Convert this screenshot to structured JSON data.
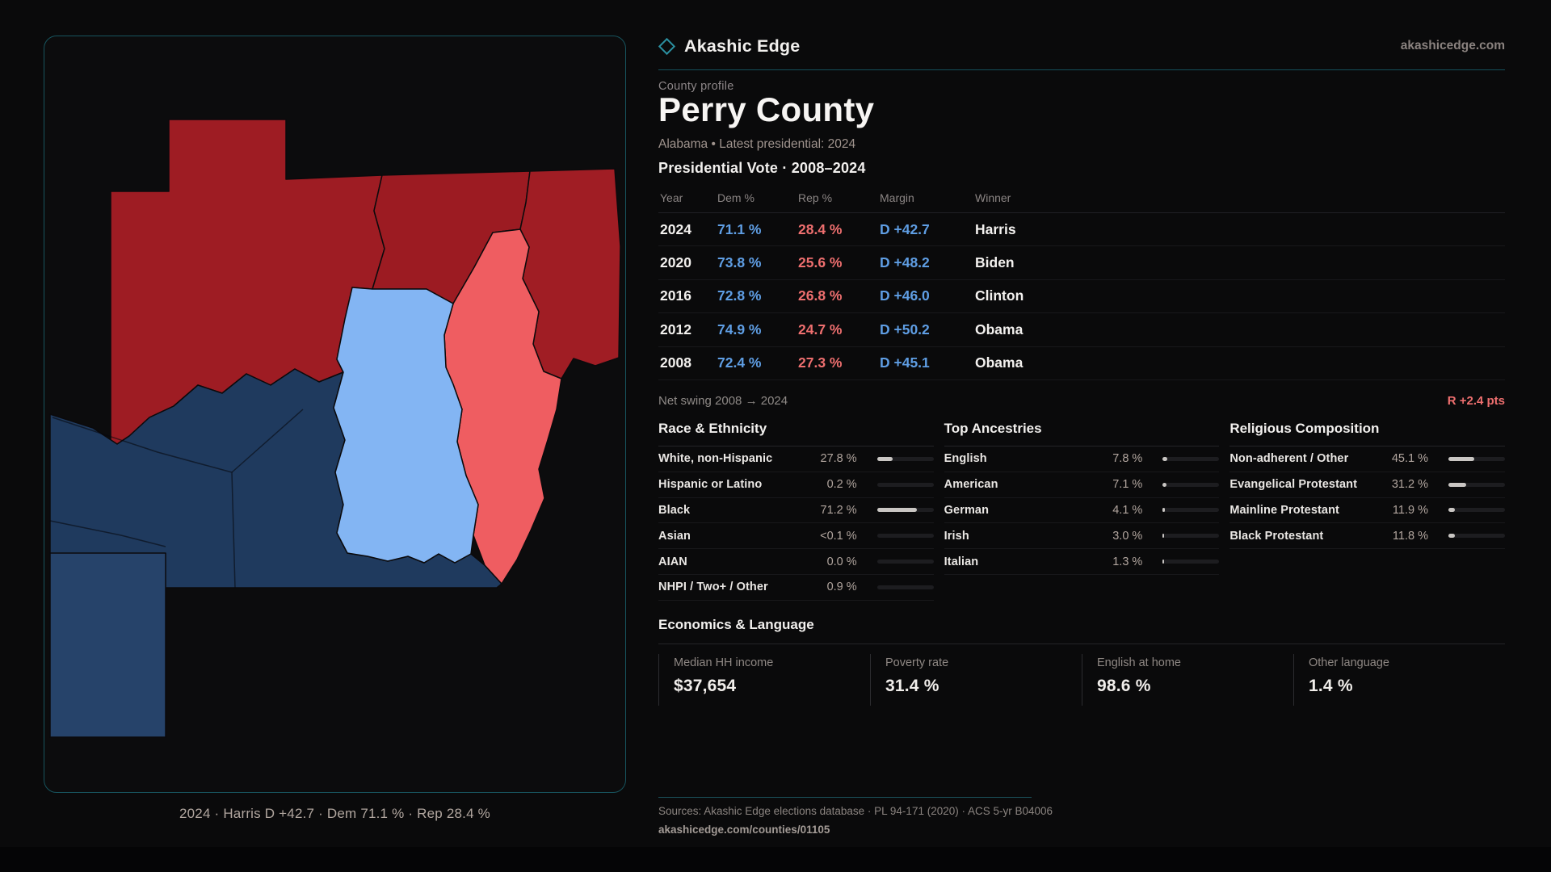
{
  "brand": {
    "name": "Akashic Edge",
    "site": "akashicedge.com"
  },
  "profile": {
    "eyebrow": "County profile",
    "title": "Perry County",
    "subtitle": "Alabama • Latest presidential: 2024"
  },
  "map": {
    "caption": "2024 · Harris D +42.7 · Dem 71.1 % · Rep 28.4 %",
    "colors": {
      "strong_dem_navy": "#1f3a5e",
      "light_dem_highlight": "#83b5f3",
      "lean_rep_salmon": "#ef5d61",
      "strong_rep_dark_red": "#9e1c23"
    }
  },
  "vote_table": {
    "title": "Presidential Vote · 2008–2024",
    "columns": [
      "Year",
      "Dem %",
      "Rep %",
      "Margin",
      "Winner"
    ],
    "rows": [
      {
        "year": "2024",
        "dem": "71.1 %",
        "rep": "28.4 %",
        "margin": "D +42.7",
        "winner": "Harris"
      },
      {
        "year": "2020",
        "dem": "73.8 %",
        "rep": "25.6 %",
        "margin": "D +48.2",
        "winner": "Biden"
      },
      {
        "year": "2016",
        "dem": "72.8 %",
        "rep": "26.8 %",
        "margin": "D +46.0",
        "winner": "Clinton"
      },
      {
        "year": "2012",
        "dem": "74.9 %",
        "rep": "24.7 %",
        "margin": "D +50.2",
        "winner": "Obama"
      },
      {
        "year": "2008",
        "dem": "72.4 %",
        "rep": "27.3 %",
        "margin": "D +45.1",
        "winner": "Obama"
      }
    ]
  },
  "net_swing": {
    "label": "Net swing 2008 → 2024",
    "value": "R +2.4 pts"
  },
  "demographics": [
    {
      "title": "Race & Ethnicity",
      "rows": [
        {
          "label": "White, non-Hispanic",
          "value": "27.8 %",
          "pct": 27.8
        },
        {
          "label": "Hispanic or Latino",
          "value": "0.2 %",
          "pct": 0.2
        },
        {
          "label": "Black",
          "value": "71.2 %",
          "pct": 71.2
        },
        {
          "label": "Asian",
          "value": "<0.1 %",
          "pct": 0.05
        },
        {
          "label": "AIAN",
          "value": "0.0 %",
          "pct": 0
        },
        {
          "label": "NHPI / Two+ / Other",
          "value": "0.9 %",
          "pct": 0.9
        }
      ]
    },
    {
      "title": "Top Ancestries",
      "rows": [
        {
          "label": "English",
          "value": "7.8 %",
          "pct": 7.8
        },
        {
          "label": "American",
          "value": "7.1 %",
          "pct": 7.1
        },
        {
          "label": "German",
          "value": "4.1 %",
          "pct": 4.1
        },
        {
          "label": "Irish",
          "value": "3.0 %",
          "pct": 3.0
        },
        {
          "label": "Italian",
          "value": "1.3 %",
          "pct": 1.3
        }
      ]
    },
    {
      "title": "Religious Composition",
      "rows": [
        {
          "label": "Non-adherent / Other",
          "value": "45.1 %",
          "pct": 45.1
        },
        {
          "label": "Evangelical Protestant",
          "value": "31.2 %",
          "pct": 31.2
        },
        {
          "label": "Mainline Protestant",
          "value": "11.9 %",
          "pct": 11.9
        },
        {
          "label": "Black Protestant",
          "value": "11.8 %",
          "pct": 11.8
        }
      ]
    }
  ],
  "economics": {
    "title": "Economics & Language",
    "stats": [
      {
        "label": "Median HH income",
        "value": "$37,654"
      },
      {
        "label": "Poverty rate",
        "value": "31.4 %"
      },
      {
        "label": "English at home",
        "value": "98.6 %"
      },
      {
        "label": "Other language",
        "value": "1.4 %"
      }
    ]
  },
  "footer": {
    "sources": "Sources: Akashic Edge elections database · PL 94-171 (2020) · ACS 5-yr B04006",
    "permalink": "akashicedge.com/counties/01105"
  },
  "colors": {
    "accent_teal": "#2b8fa0",
    "dem_blue": "#5f9ee4",
    "rep_red": "#ee6f6f"
  }
}
